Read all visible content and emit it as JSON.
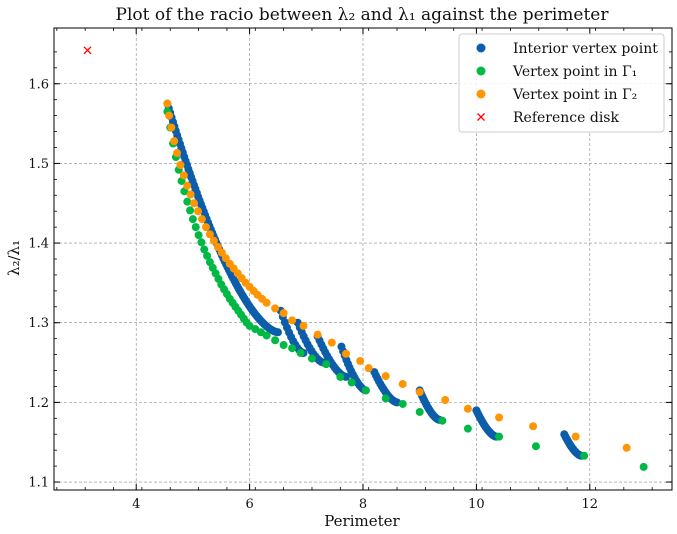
{
  "chart_data": {
    "type": "scatter",
    "title": "Plot of the racio between λ₂ and λ₁ against the perimeter",
    "xlabel": "Perimeter",
    "ylabel": "λ₂/λ₁",
    "xlim": [
      2.55,
      13.45
    ],
    "ylim": [
      1.09,
      1.67
    ],
    "xticks": [
      4,
      6,
      8,
      10,
      12
    ],
    "yticks": [
      1.1,
      1.2,
      1.3,
      1.4,
      1.5,
      1.6
    ],
    "grid": true,
    "legend_position": "top-right",
    "series": [
      {
        "name": "Interior vertex point",
        "marker": "circle",
        "color": "#0c5daa",
        "segments": [
          {
            "x0": 4.55,
            "x1": 6.5,
            "y0": 1.575,
            "y1": 1.288,
            "n": 80
          },
          {
            "x0": 6.55,
            "x1": 6.95,
            "y0": 1.315,
            "y1": 1.262,
            "n": 12
          },
          {
            "x0": 6.85,
            "x1": 7.3,
            "y0": 1.3,
            "y1": 1.25,
            "n": 14
          },
          {
            "x0": 7.2,
            "x1": 7.7,
            "y0": 1.283,
            "y1": 1.232,
            "n": 16
          },
          {
            "x0": 7.62,
            "x1": 8.05,
            "y0": 1.27,
            "y1": 1.215,
            "n": 16
          },
          {
            "x0": 8.2,
            "x1": 8.6,
            "y0": 1.238,
            "y1": 1.2,
            "n": 16
          },
          {
            "x0": 9.0,
            "x1": 9.35,
            "y0": 1.215,
            "y1": 1.178,
            "n": 18
          },
          {
            "x0": 10.0,
            "x1": 10.35,
            "y0": 1.19,
            "y1": 1.157,
            "n": 20
          },
          {
            "x0": 11.55,
            "x1": 11.85,
            "y0": 1.16,
            "y1": 1.133,
            "n": 20
          }
        ]
      },
      {
        "name": "Vertex point in Γ₁",
        "marker": "circle",
        "color": "#00b945",
        "points": [
          [
            4.55,
            1.565
          ],
          [
            4.6,
            1.545
          ],
          [
            4.65,
            1.525
          ],
          [
            4.7,
            1.508
          ],
          [
            4.75,
            1.492
          ],
          [
            4.8,
            1.478
          ],
          [
            4.85,
            1.465
          ],
          [
            4.9,
            1.452
          ],
          [
            4.95,
            1.441
          ],
          [
            5.0,
            1.43
          ],
          [
            5.05,
            1.42
          ],
          [
            5.1,
            1.41
          ],
          [
            5.15,
            1.401
          ],
          [
            5.2,
            1.392
          ],
          [
            5.25,
            1.384
          ],
          [
            5.3,
            1.376
          ],
          [
            5.35,
            1.369
          ],
          [
            5.4,
            1.362
          ],
          [
            5.45,
            1.355
          ],
          [
            5.5,
            1.348
          ],
          [
            5.55,
            1.342
          ],
          [
            5.6,
            1.336
          ],
          [
            5.65,
            1.33
          ],
          [
            5.7,
            1.325
          ],
          [
            5.75,
            1.32
          ],
          [
            5.8,
            1.315
          ],
          [
            5.85,
            1.31
          ],
          [
            5.9,
            1.305
          ],
          [
            5.95,
            1.3
          ],
          [
            6.0,
            1.296
          ],
          [
            6.1,
            1.292
          ],
          [
            6.2,
            1.288
          ],
          [
            6.3,
            1.284
          ],
          [
            6.45,
            1.278
          ],
          [
            6.6,
            1.272
          ],
          [
            6.75,
            1.268
          ],
          [
            6.9,
            1.262
          ],
          [
            7.1,
            1.255
          ],
          [
            7.35,
            1.248
          ],
          [
            7.6,
            1.232
          ],
          [
            7.8,
            1.225
          ],
          [
            8.05,
            1.215
          ],
          [
            8.4,
            1.205
          ],
          [
            8.7,
            1.198
          ],
          [
            9.0,
            1.188
          ],
          [
            9.4,
            1.177
          ],
          [
            9.85,
            1.167
          ],
          [
            10.4,
            1.157
          ],
          [
            11.05,
            1.145
          ],
          [
            11.9,
            1.133
          ],
          [
            12.95,
            1.119
          ]
        ]
      },
      {
        "name": "Vertex point in Γ₂",
        "marker": "circle",
        "color": "#ff9500",
        "points": [
          [
            4.55,
            1.575
          ],
          [
            4.58,
            1.56
          ],
          [
            4.62,
            1.545
          ],
          [
            4.67,
            1.528
          ],
          [
            4.72,
            1.513
          ],
          [
            4.78,
            1.498
          ],
          [
            4.84,
            1.485
          ],
          [
            4.9,
            1.472
          ],
          [
            4.96,
            1.461
          ],
          [
            5.02,
            1.45
          ],
          [
            5.09,
            1.44
          ],
          [
            5.16,
            1.43
          ],
          [
            5.23,
            1.42
          ],
          [
            5.3,
            1.411
          ],
          [
            5.37,
            1.403
          ],
          [
            5.44,
            1.395
          ],
          [
            5.51,
            1.388
          ],
          [
            5.58,
            1.381
          ],
          [
            5.65,
            1.374
          ],
          [
            5.72,
            1.368
          ],
          [
            5.79,
            1.362
          ],
          [
            5.86,
            1.356
          ],
          [
            5.93,
            1.35
          ],
          [
            6.0,
            1.345
          ],
          [
            6.07,
            1.34
          ],
          [
            6.14,
            1.335
          ],
          [
            6.22,
            1.33
          ],
          [
            6.3,
            1.325
          ],
          [
            6.45,
            1.318
          ],
          [
            6.6,
            1.312
          ],
          [
            6.75,
            1.303
          ],
          [
            6.95,
            1.296
          ],
          [
            7.2,
            1.285
          ],
          [
            7.45,
            1.275
          ],
          [
            7.7,
            1.261
          ],
          [
            7.95,
            1.252
          ],
          [
            8.1,
            1.243
          ],
          [
            8.4,
            1.233
          ],
          [
            8.7,
            1.223
          ],
          [
            9.0,
            1.213
          ],
          [
            9.45,
            1.203
          ],
          [
            9.85,
            1.192
          ],
          [
            10.4,
            1.181
          ],
          [
            11.0,
            1.17
          ],
          [
            11.75,
            1.157
          ],
          [
            12.65,
            1.143
          ]
        ]
      },
      {
        "name": "Reference disk",
        "marker": "x",
        "color": "#ff0000",
        "points": [
          [
            3.14,
            1.642
          ]
        ]
      }
    ]
  }
}
